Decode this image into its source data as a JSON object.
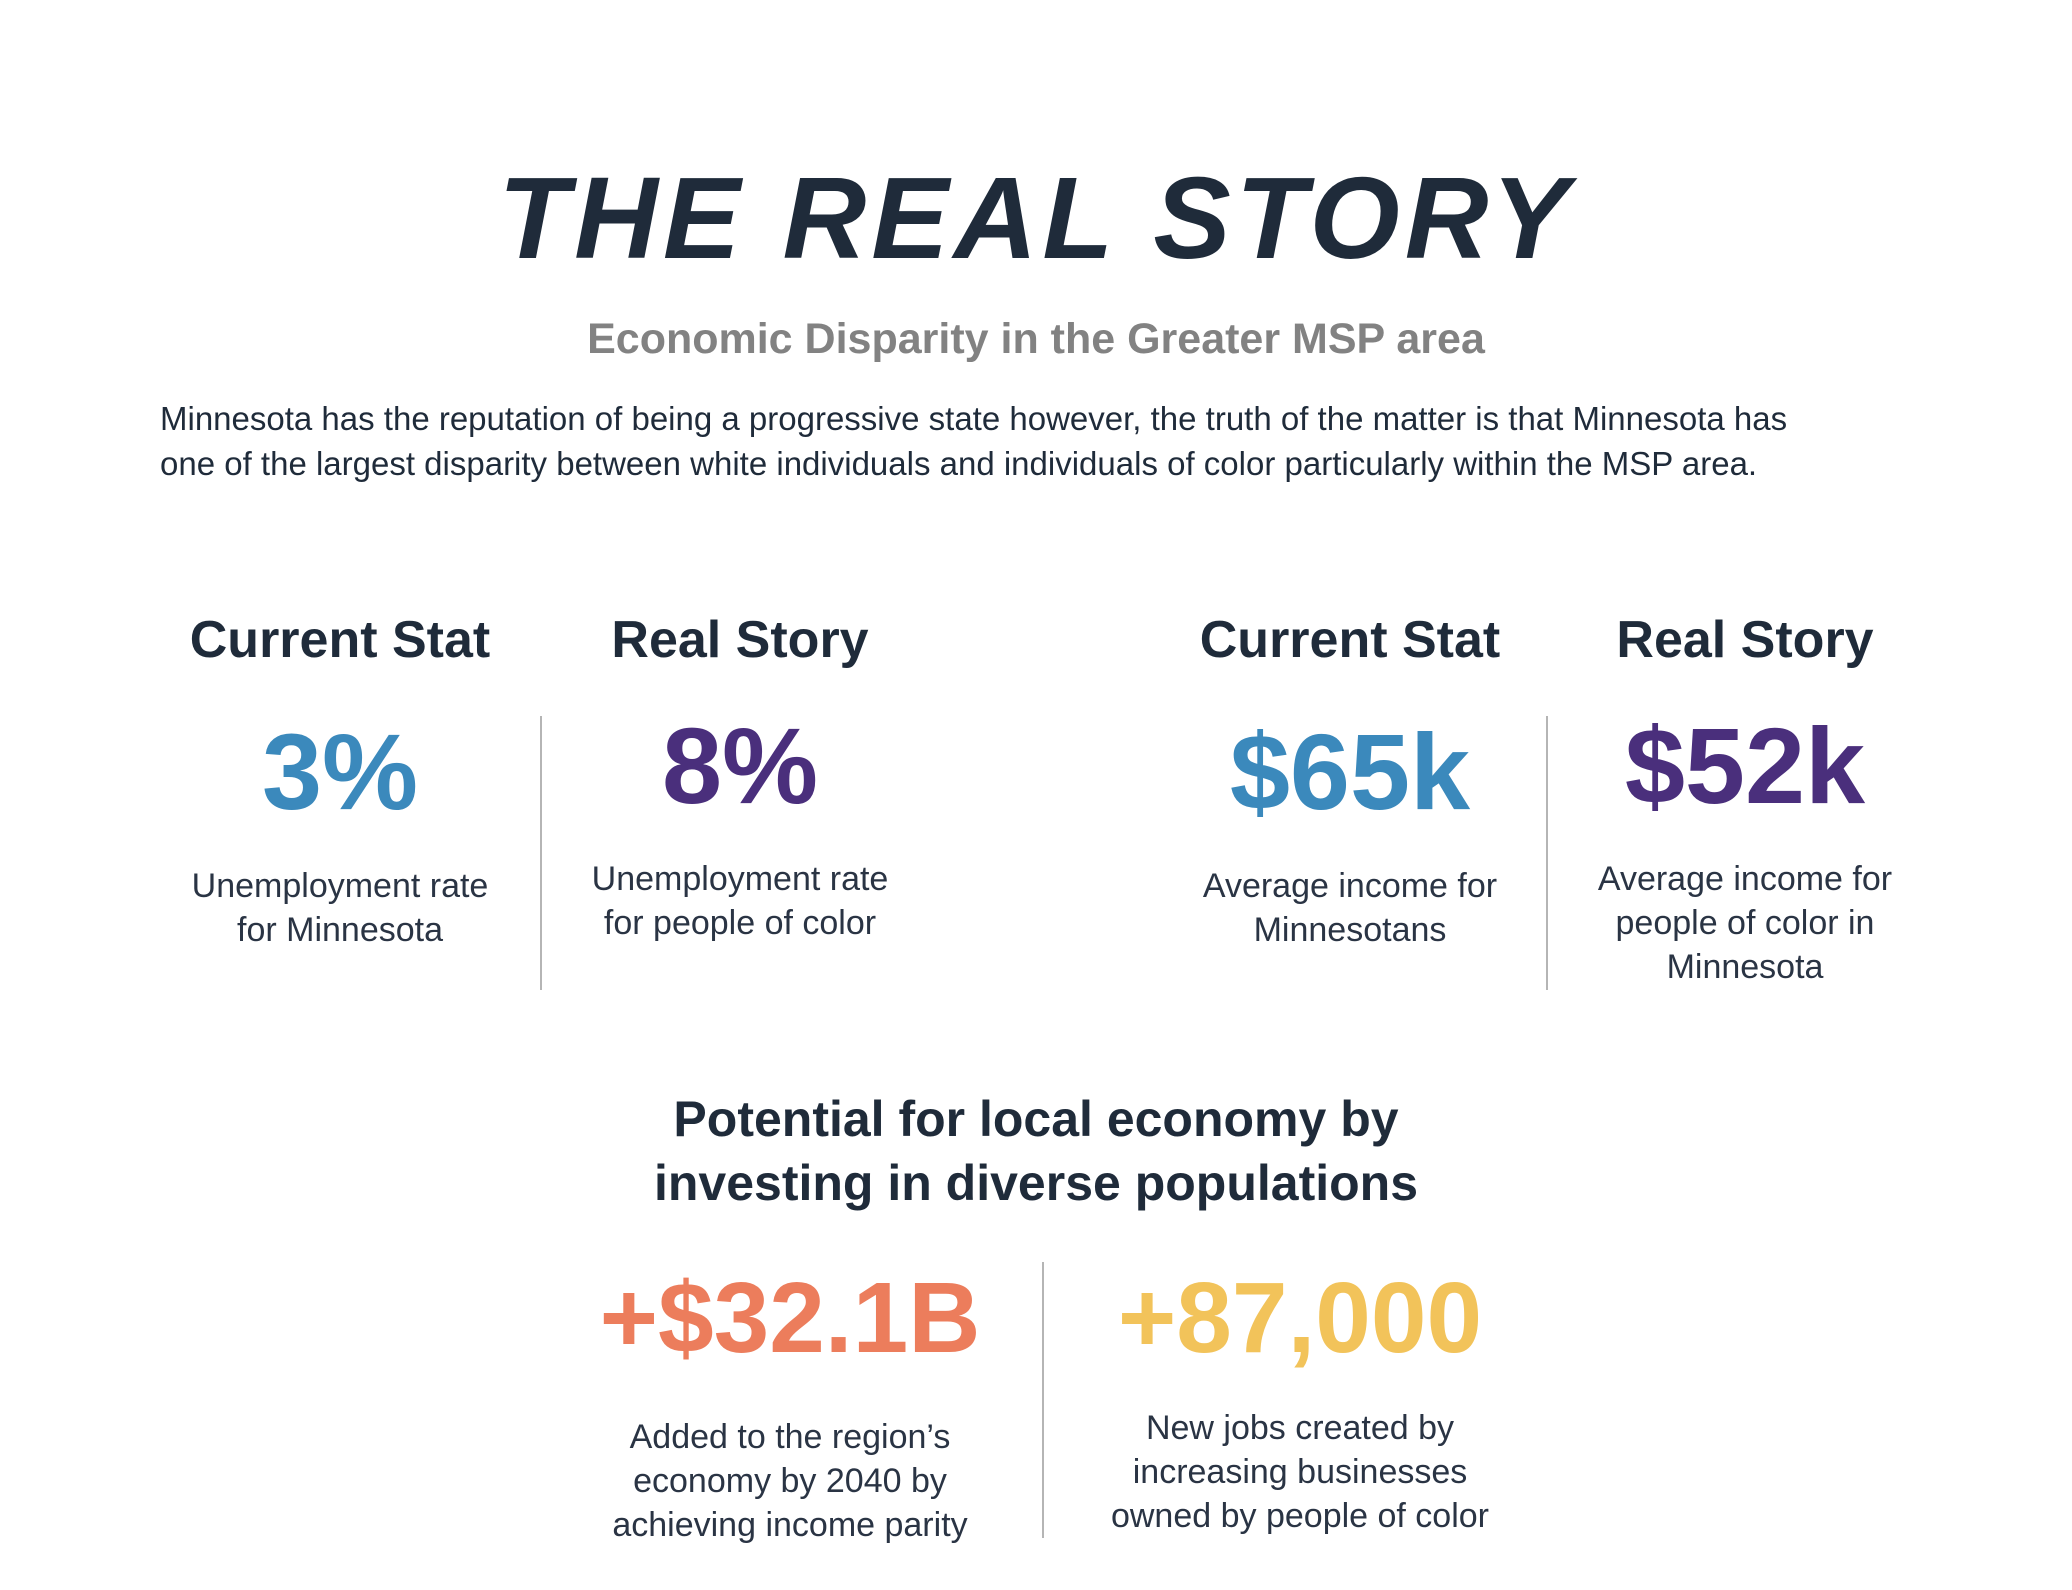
{
  "header": {
    "title": "THE REAL STORY",
    "subtitle": "Economic Disparity in the Greater MSP area",
    "intro_line1": "Minnesota has the reputation of being a progressive state however, the truth of the matter is that Minnesota has",
    "intro_line2": "one of the largest disparity between white individuals and individuals of color particularly within the MSP area."
  },
  "stats": [
    {
      "heading": "Current Stat",
      "value": "3%",
      "desc_line1": "Unemployment rate",
      "desc_line2": "for Minnesota",
      "color": "#3b89bc"
    },
    {
      "heading": "Real Story",
      "value": "8%",
      "desc_line1": "Unemployment rate",
      "desc_line2": "for people of color",
      "color": "#4a2f7c"
    },
    {
      "heading": "Current Stat",
      "value": "$65k",
      "desc_line1": "Average income for",
      "desc_line2": "Minnesotans",
      "color": "#3b89bc"
    },
    {
      "heading": "Real Story",
      "value": "$52k",
      "desc_line1": "Average income for",
      "desc_line2": "people of color in",
      "desc_line3": "Minnesota",
      "color": "#4a2f7c"
    }
  ],
  "potential": {
    "title_line1": "Potential for local economy by",
    "title_line2": "investing in diverse populations",
    "items": [
      {
        "value": "+$32.1B",
        "desc_line1": "Added to the region’s",
        "desc_line2": "economy by 2040 by",
        "desc_line3": "achieving income parity",
        "color": "#ec7d5c"
      },
      {
        "value": "+87,000",
        "desc_line1": "New jobs created by",
        "desc_line2": "increasing businesses",
        "desc_line3": "owned by people of color",
        "color": "#f2c35a"
      }
    ]
  }
}
